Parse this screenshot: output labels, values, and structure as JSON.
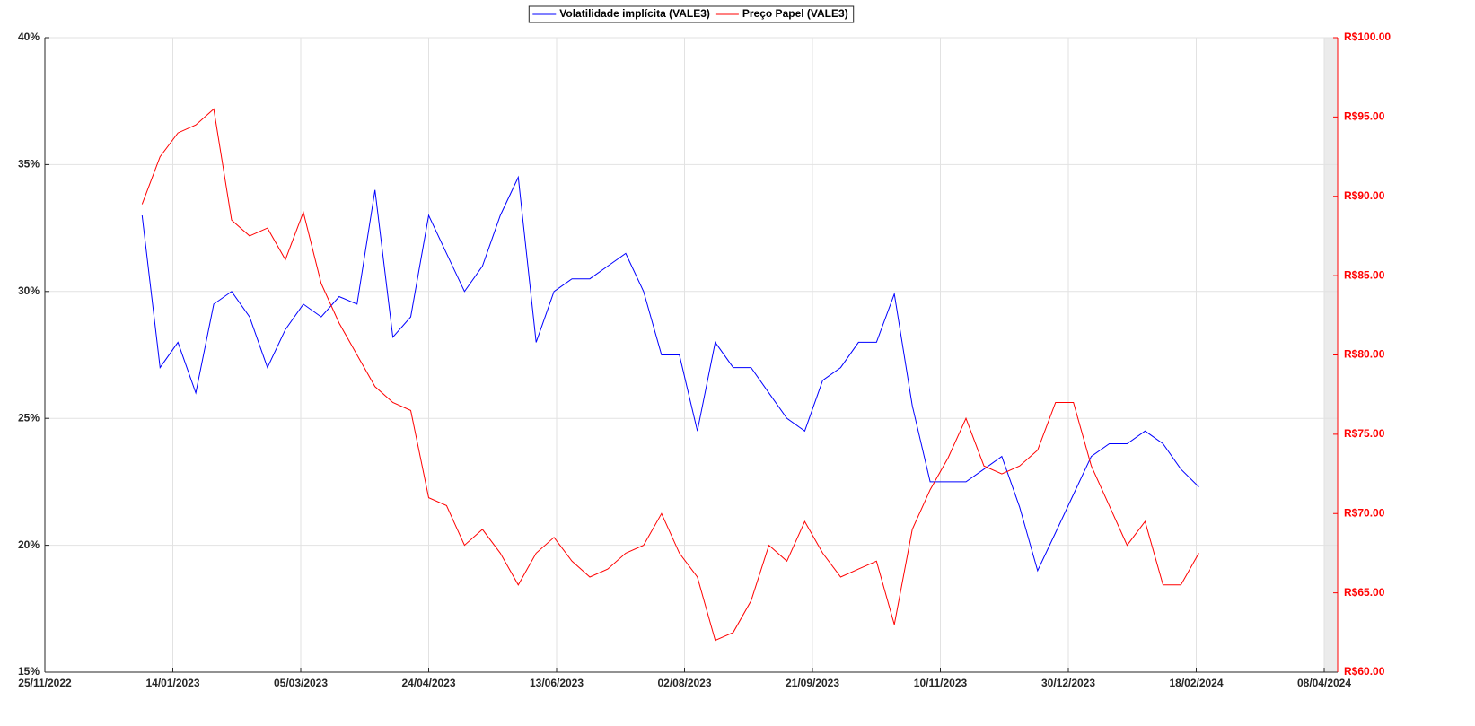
{
  "chart_data": {
    "type": "line",
    "x": [
      "02/01/2023",
      "09/01/2023",
      "16/01/2023",
      "23/01/2023",
      "30/01/2023",
      "06/02/2023",
      "13/02/2023",
      "20/02/2023",
      "27/02/2023",
      "06/03/2023",
      "13/03/2023",
      "20/03/2023",
      "27/03/2023",
      "03/04/2023",
      "10/04/2023",
      "17/04/2023",
      "24/04/2023",
      "01/05/2023",
      "08/05/2023",
      "15/05/2023",
      "22/05/2023",
      "29/05/2023",
      "05/06/2023",
      "12/06/2023",
      "19/06/2023",
      "26/06/2023",
      "03/07/2023",
      "10/07/2023",
      "17/07/2023",
      "24/07/2023",
      "31/07/2023",
      "07/08/2023",
      "14/08/2023",
      "21/08/2023",
      "28/08/2023",
      "04/09/2023",
      "11/09/2023",
      "18/09/2023",
      "25/09/2023",
      "02/10/2023",
      "09/10/2023",
      "16/10/2023",
      "23/10/2023",
      "30/10/2023",
      "06/11/2023",
      "13/11/2023",
      "20/11/2023",
      "27/11/2023",
      "04/12/2023",
      "11/12/2023",
      "18/12/2023",
      "25/12/2023",
      "01/01/2024",
      "08/01/2024",
      "15/01/2024",
      "22/01/2024",
      "29/01/2024",
      "05/02/2024",
      "12/02/2024",
      "19/02/2024"
    ],
    "series": [
      {
        "name": "Volatilidade implícita (VALE3)",
        "color": "#0000ff",
        "values": [
          33.0,
          27.0,
          28.0,
          26.0,
          29.5,
          30.0,
          29.0,
          27.0,
          28.5,
          29.5,
          29.0,
          29.8,
          29.5,
          34.0,
          28.2,
          29.0,
          33.0,
          31.5,
          30.0,
          31.0,
          33.0,
          34.5,
          28.0,
          30.0,
          30.5,
          30.5,
          31.0,
          31.5,
          30.0,
          27.5,
          27.5,
          24.5,
          28.0,
          27.0,
          27.0,
          26.0,
          25.0,
          24.5,
          26.5,
          27.0,
          28.0,
          28.0,
          29.9,
          25.5,
          22.5,
          22.5,
          22.5,
          23.0,
          23.5,
          21.5,
          19.0,
          20.5,
          22.0,
          23.5,
          24.0,
          24.0,
          24.5,
          24.0,
          23.0,
          22.3
        ]
      },
      {
        "name": "Preço Papel (VALE3)",
        "color": "#ff0000",
        "axis": "y2",
        "values": [
          89.5,
          92.5,
          94.0,
          94.5,
          95.5,
          88.5,
          87.5,
          88.0,
          86.0,
          89.0,
          84.5,
          82.0,
          80.0,
          78.0,
          77.0,
          76.5,
          71.0,
          70.5,
          68.0,
          69.0,
          67.5,
          65.5,
          67.5,
          68.5,
          67.0,
          66.0,
          66.5,
          67.5,
          68.0,
          70.0,
          67.5,
          66.0,
          62.0,
          62.5,
          64.5,
          68.0,
          67.0,
          69.5,
          67.5,
          66.0,
          66.5,
          67.0,
          63.0,
          69.0,
          71.5,
          73.5,
          76.0,
          73.0,
          72.5,
          73.0,
          74.0,
          77.0,
          77.0,
          73.0,
          70.5,
          68.0,
          69.5,
          65.5,
          65.5,
          67.5
        ]
      }
    ],
    "xlim": [
      "25/11/2022",
      "08/04/2024"
    ],
    "xticks": [
      "25/11/2022",
      "14/01/2023",
      "05/03/2023",
      "24/04/2023",
      "13/06/2023",
      "02/08/2023",
      "21/09/2023",
      "10/11/2023",
      "30/12/2023",
      "18/02/2024",
      "08/04/2024"
    ],
    "ylim": [
      15,
      40
    ],
    "yticks": [
      {
        "value": 15,
        "label": "15%"
      },
      {
        "value": 20,
        "label": "20%"
      },
      {
        "value": 25,
        "label": "25%"
      },
      {
        "value": 30,
        "label": "30%"
      },
      {
        "value": 35,
        "label": "35%"
      },
      {
        "value": 40,
        "label": "40%"
      }
    ],
    "y2lim": [
      60,
      100
    ],
    "y2ticks": [
      {
        "value": 60,
        "label": "R$60.00"
      },
      {
        "value": 65,
        "label": "R$65.00"
      },
      {
        "value": 70,
        "label": "R$70.00"
      },
      {
        "value": 75,
        "label": "R$75.00"
      },
      {
        "value": 80,
        "label": "R$80.00"
      },
      {
        "value": 85,
        "label": "R$85.00"
      },
      {
        "value": 90,
        "label": "R$90.00"
      },
      {
        "value": 95,
        "label": "R$95.00"
      },
      {
        "value": 100,
        "label": "R$100.00"
      }
    ],
    "grid": true,
    "legend": "top"
  }
}
